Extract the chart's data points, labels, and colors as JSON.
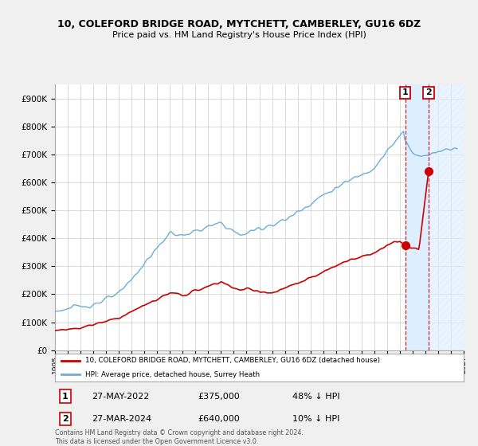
{
  "title": "10, COLEFORD BRIDGE ROAD, MYTCHETT, CAMBERLEY, GU16 6DZ",
  "subtitle": "Price paid vs. HM Land Registry's House Price Index (HPI)",
  "background_color": "#f0f0f0",
  "plot_bg_color": "#ffffff",
  "hpi_color": "#6baed6",
  "property_color": "#cc0000",
  "dashed_color": "#cc0000",
  "sale1": {
    "date": "27-MAY-2022",
    "price": 375000,
    "pct": "48% ↓ HPI"
  },
  "sale2": {
    "date": "27-MAR-2024",
    "price": 640000,
    "pct": "10% ↓ HPI"
  },
  "legend_property": "10, COLEFORD BRIDGE ROAD, MYTCHETT, CAMBERLEY, GU16 6DZ (detached house)",
  "legend_hpi": "HPI: Average price, detached house, Surrey Heath",
  "footer": "Contains HM Land Registry data © Crown copyright and database right 2024.\nThis data is licensed under the Open Government Licence v3.0.",
  "ylim": [
    0,
    950000
  ],
  "yticks": [
    0,
    100000,
    200000,
    300000,
    400000,
    500000,
    600000,
    700000,
    800000,
    900000
  ],
  "sale1_year": 2022.42,
  "sale2_year": 2024.25,
  "xmin": 1995,
  "xmax": 2027
}
